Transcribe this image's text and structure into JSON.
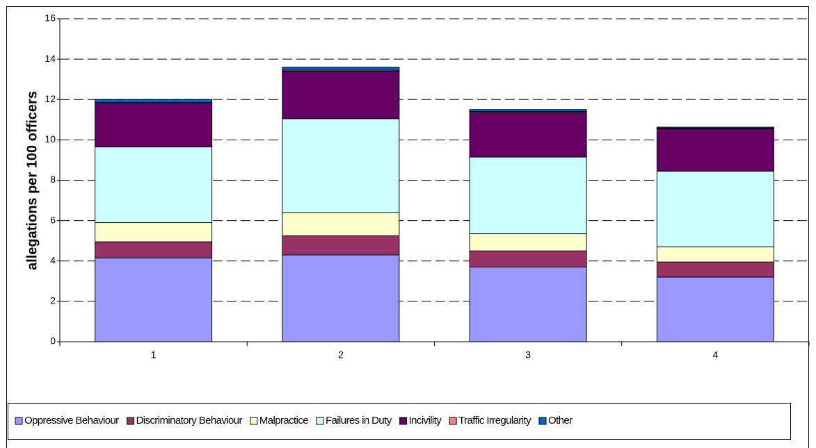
{
  "chart_data": {
    "type": "stacked_bar",
    "y_label": "allegations per 100 officers",
    "categories": [
      "1",
      "2",
      "3",
      "4"
    ],
    "series": [
      {
        "name": "Oppressive Behaviour",
        "color": "#9999ff",
        "values": [
          4.15,
          4.3,
          3.7,
          3.2
        ]
      },
      {
        "name": "Discriminatory Behaviour",
        "color": "#993366",
        "values": [
          0.8,
          0.95,
          0.8,
          0.75
        ]
      },
      {
        "name": "Malpractice",
        "color": "#ffffcc",
        "values": [
          0.95,
          1.15,
          0.85,
          0.75
        ]
      },
      {
        "name": "Failures in Duty",
        "color": "#ccffff",
        "values": [
          3.75,
          4.65,
          3.8,
          3.75
        ]
      },
      {
        "name": "Incivility",
        "color": "#660066",
        "values": [
          2.15,
          2.35,
          2.2,
          2.1
        ]
      },
      {
        "name": "Traffic Irregularity",
        "color": "#ff8080",
        "values": [
          0.05,
          0.05,
          0.05,
          0.03
        ]
      },
      {
        "name": "Other",
        "color": "#0066cc",
        "values": [
          0.15,
          0.15,
          0.1,
          0.05
        ]
      }
    ],
    "ylim": [
      0,
      16
    ],
    "yticks": [
      0,
      2,
      4,
      6,
      8,
      10,
      12,
      14,
      16
    ],
    "grid": true,
    "legend": "bottom"
  }
}
